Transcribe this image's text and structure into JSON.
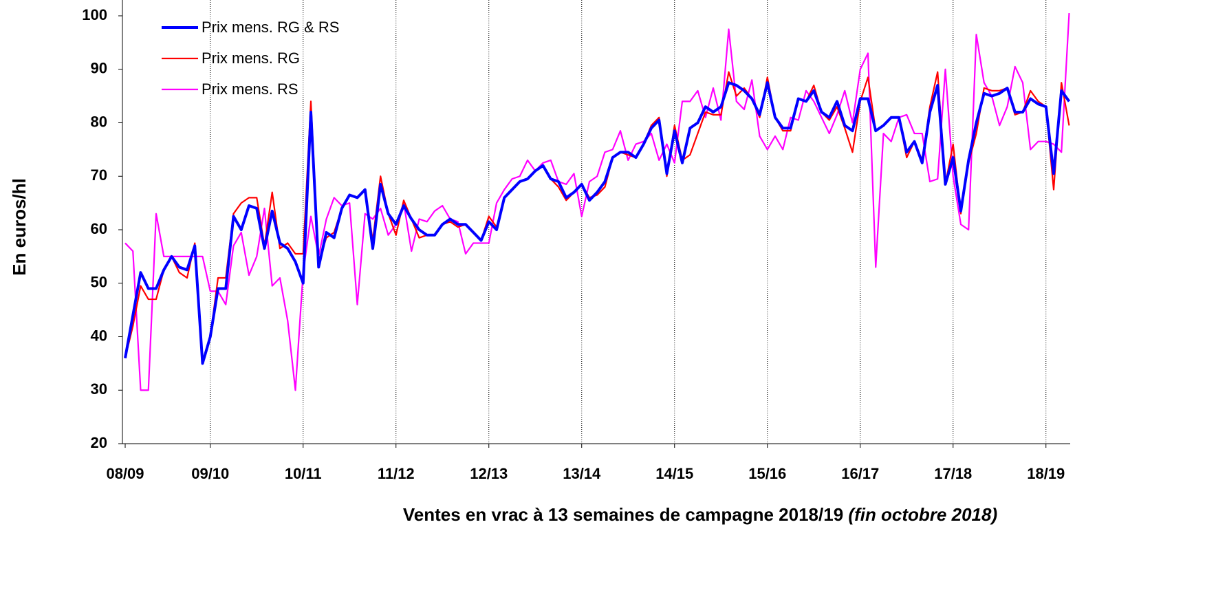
{
  "chart_data": {
    "type": "line",
    "y_label": "En euros/hl",
    "x_label": "Ventes en vrac à 13 semaines de campagne 2018/19",
    "x_label_note": "(fin octobre 2018)",
    "categories": [
      "08/09",
      null,
      null,
      null,
      null,
      null,
      null,
      null,
      null,
      null,
      null,
      "09/10",
      null,
      null,
      null,
      null,
      null,
      null,
      null,
      null,
      null,
      null,
      null,
      "10/11",
      null,
      null,
      null,
      null,
      null,
      null,
      null,
      null,
      null,
      null,
      null,
      "11/12",
      null,
      null,
      null,
      null,
      null,
      null,
      null,
      null,
      null,
      null,
      null,
      "12/13",
      null,
      null,
      null,
      null,
      null,
      null,
      null,
      null,
      null,
      null,
      null,
      "13/14",
      null,
      null,
      null,
      null,
      null,
      null,
      null,
      null,
      null,
      null,
      null,
      "14/15",
      null,
      null,
      null,
      null,
      null,
      null,
      null,
      null,
      null,
      null,
      null,
      "15/16",
      null,
      null,
      null,
      null,
      null,
      null,
      null,
      null,
      null,
      null,
      null,
      "16/17",
      null,
      null,
      null,
      null,
      null,
      null,
      null,
      null,
      null,
      null,
      null,
      "17/18",
      null,
      null,
      null,
      null,
      null,
      null,
      null,
      null,
      null,
      null,
      null,
      "18/19",
      null,
      null,
      null
    ],
    "ylim": [
      20,
      100
    ],
    "yticks": [
      20,
      30,
      40,
      50,
      60,
      70,
      80,
      90,
      100
    ],
    "grid": "x",
    "legend": "upper left",
    "series": [
      {
        "name": "Prix mens. RG & RS",
        "color": "#0000ff",
        "values": [
          36,
          44,
          52,
          49,
          49,
          52.5,
          55,
          53,
          52.5,
          57,
          35,
          40,
          49,
          49,
          62.5,
          60,
          64.5,
          64,
          56.5,
          63.5,
          57.5,
          56.5,
          54,
          50,
          82,
          53,
          59.5,
          58.5,
          64,
          66.5,
          66,
          67.5,
          56.5,
          68.5,
          63,
          61,
          64.5,
          62,
          60,
          59,
          59,
          61,
          62,
          61,
          61,
          59.5,
          58,
          61.5,
          60,
          66,
          67.5,
          69,
          69.5,
          71,
          72,
          69.5,
          69,
          66,
          67,
          68.5,
          65.5,
          67,
          69,
          73.5,
          74.5,
          74.5,
          73.5,
          76,
          79,
          80.5,
          70.5,
          78.5,
          72.5,
          79,
          80,
          83,
          82,
          83,
          87.5,
          87,
          86,
          84.5,
          81.5,
          87.5,
          81,
          79,
          79,
          84.5,
          84,
          86,
          82,
          81,
          84,
          79.5,
          78.5,
          84.5,
          84.5,
          78.5,
          79.5,
          81,
          81,
          74.5,
          76.5,
          72.5,
          82,
          87,
          68.5,
          73.5,
          63.5,
          73,
          80,
          85.5,
          85,
          85.5,
          86.5,
          82,
          82,
          84.5,
          83.5,
          83,
          70.5,
          86,
          84
        ]
      },
      {
        "name": "Prix mens. RG",
        "color": "#ff0000",
        "values": [
          36,
          42,
          49.5,
          47,
          47,
          52.5,
          55,
          52,
          51,
          57.5,
          35,
          40,
          51,
          51,
          63,
          65,
          66,
          66,
          57,
          67,
          56.5,
          57.5,
          55.5,
          55.5,
          84,
          54,
          58.5,
          59.5,
          64,
          66.5,
          66,
          67.5,
          58,
          70,
          63,
          59,
          65.5,
          62,
          58.5,
          59,
          59,
          61,
          61.5,
          60.5,
          61,
          59.5,
          58,
          62.5,
          60.5,
          66,
          67.5,
          69,
          69.5,
          71,
          72,
          69.5,
          68,
          65.5,
          67,
          68.5,
          66,
          66.5,
          68,
          73.5,
          74.5,
          74,
          73.5,
          76,
          79.5,
          81,
          70,
          79.5,
          73,
          74,
          78,
          82,
          81.5,
          81.5,
          89.5,
          85,
          86.5,
          84.5,
          81,
          88.5,
          81,
          78.5,
          78.5,
          84.5,
          84,
          87,
          82,
          80.5,
          83,
          79,
          74.5,
          84,
          88.5,
          78.5,
          79.5,
          81,
          81,
          73.5,
          76.5,
          73,
          83,
          89.5,
          68.5,
          76,
          63,
          72.5,
          78,
          86.5,
          86,
          86,
          86.5,
          81.5,
          82,
          86,
          84,
          83,
          67.5,
          87.5,
          79.5
        ]
      },
      {
        "name": "Prix mens. RS",
        "color": "#ff00ff",
        "values": [
          57.5,
          56,
          30,
          30,
          63,
          55,
          55,
          55,
          55,
          55,
          55,
          48.5,
          48.5,
          46,
          57,
          59.5,
          51.5,
          55,
          64,
          49.5,
          51,
          43,
          30,
          52,
          62.5,
          55,
          62,
          66,
          64.5,
          65,
          46,
          63,
          62,
          64,
          59,
          61,
          65,
          56,
          62,
          61.5,
          63.5,
          64.5,
          62,
          61.5,
          55.5,
          57.5,
          57.5,
          57.5,
          65,
          67.5,
          69.5,
          70,
          73,
          71,
          72.5,
          73,
          69,
          68.5,
          70.5,
          62.5,
          69,
          70,
          74.5,
          75,
          78.5,
          73,
          76,
          76.5,
          78,
          73,
          76,
          72.5,
          84,
          84,
          86,
          81,
          86.5,
          80.5,
          97.5,
          84,
          82.5,
          88,
          77.5,
          75,
          77.5,
          75,
          81,
          80.5,
          86,
          84,
          81,
          78,
          81.5,
          86,
          80,
          90,
          93,
          53,
          78,
          76.5,
          81,
          81.5,
          78,
          78,
          69,
          69.5,
          90,
          70,
          61,
          60,
          96.5,
          87.5,
          85,
          79.5,
          83,
          90.5,
          87.5,
          75,
          76.5,
          76.5,
          76,
          74.5,
          100.5
        ]
      }
    ]
  }
}
